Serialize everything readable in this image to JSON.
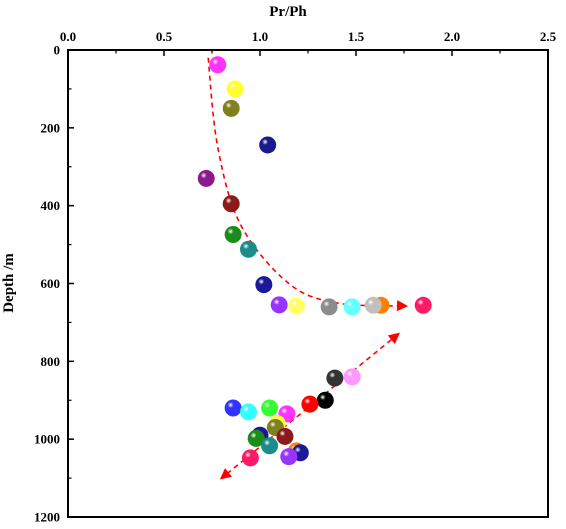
{
  "chart_data": {
    "type": "scatter",
    "title": "",
    "xlabel": "Pr/Ph",
    "ylabel": "Depth  /m",
    "x_axis_position": "top",
    "y_axis_inverted": true,
    "xlim": [
      0.0,
      2.5
    ],
    "ylim": [
      0,
      1200
    ],
    "x_ticks": [
      "0.0",
      "0.5",
      "1.0",
      "1.5",
      "2.0",
      "2.5"
    ],
    "y_ticks": [
      "0",
      "200",
      "400",
      "600",
      "800",
      "1000",
      "1200"
    ],
    "grid": false,
    "legend": "none",
    "marker_style": "shaded sphere",
    "points": [
      {
        "x": 0.78,
        "y": 38,
        "color": "#ff33ff"
      },
      {
        "x": 0.87,
        "y": 100,
        "color": "#ffff33"
      },
      {
        "x": 0.85,
        "y": 150,
        "color": "#808020"
      },
      {
        "x": 1.04,
        "y": 244,
        "color": "#1a1a8c"
      },
      {
        "x": 0.72,
        "y": 330,
        "color": "#8c1a8c"
      },
      {
        "x": 0.85,
        "y": 395,
        "color": "#8c1a1a"
      },
      {
        "x": 0.86,
        "y": 474,
        "color": "#1a8c1a"
      },
      {
        "x": 0.94,
        "y": 512,
        "color": "#1a8c8c"
      },
      {
        "x": 1.02,
        "y": 603,
        "color": "#1a1a99"
      },
      {
        "x": 1.1,
        "y": 655,
        "color": "#9933ff"
      },
      {
        "x": 1.19,
        "y": 658,
        "color": "#ffff66"
      },
      {
        "x": 1.36,
        "y": 660,
        "color": "#8c8c8c"
      },
      {
        "x": 1.48,
        "y": 660,
        "color": "#66ffff"
      },
      {
        "x": 1.63,
        "y": 656,
        "color": "#ff8000"
      },
      {
        "x": 1.59,
        "y": 656,
        "color": "#c0c0c0"
      },
      {
        "x": 1.85,
        "y": 656,
        "color": "#ff1a66"
      },
      {
        "x": 1.48,
        "y": 840,
        "color": "#ff99ff"
      },
      {
        "x": 1.39,
        "y": 843,
        "color": "#333333"
      },
      {
        "x": 1.34,
        "y": 900,
        "color": "#000000"
      },
      {
        "x": 1.26,
        "y": 910,
        "color": "#ff0000"
      },
      {
        "x": 0.86,
        "y": 920,
        "color": "#3333ff"
      },
      {
        "x": 0.94,
        "y": 930,
        "color": "#33ffff"
      },
      {
        "x": 1.05,
        "y": 920,
        "color": "#33ff33"
      },
      {
        "x": 1.14,
        "y": 935,
        "color": "#ff33ff"
      },
      {
        "x": 1.09,
        "y": 960,
        "color": "#ffff33"
      },
      {
        "x": 1.08,
        "y": 970,
        "color": "#808020"
      },
      {
        "x": 1.0,
        "y": 990,
        "color": "#1a1a8c"
      },
      {
        "x": 1.13,
        "y": 993,
        "color": "#8c1a1a"
      },
      {
        "x": 0.98,
        "y": 998,
        "color": "#1a8c1a"
      },
      {
        "x": 1.05,
        "y": 1017,
        "color": "#1a8c8c"
      },
      {
        "x": 1.19,
        "y": 1030,
        "color": "#ff8000"
      },
      {
        "x": 1.21,
        "y": 1035,
        "color": "#1a1a99"
      },
      {
        "x": 1.15,
        "y": 1045,
        "color": "#9933ff"
      },
      {
        "x": 0.95,
        "y": 1048,
        "color": "#ff1a66"
      }
    ],
    "trend_lines": [
      {
        "style": "dashed",
        "color": "#ff0000",
        "arrow": "end",
        "path": [
          [
            0.73,
            20
          ],
          [
            0.78,
            250
          ],
          [
            0.9,
            450
          ],
          [
            1.15,
            600
          ],
          [
            1.4,
            650
          ],
          [
            1.76,
            658
          ]
        ]
      },
      {
        "style": "dashed",
        "color": "#ff0000",
        "arrow": "both",
        "path": [
          [
            1.72,
            730
          ],
          [
            0.8,
            1100
          ]
        ]
      }
    ]
  }
}
